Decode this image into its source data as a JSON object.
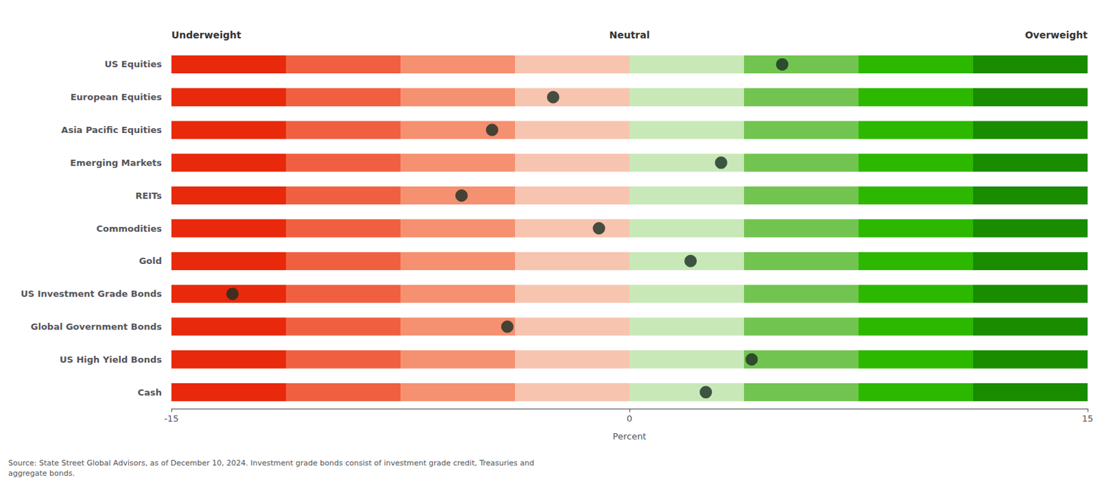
{
  "chart_data": {
    "type": "scatter",
    "orientation": "horizontal",
    "headers": [
      "Underweight",
      "Neutral",
      "Overweight"
    ],
    "xlabel": "Percent",
    "source": "Source: State Street Global Advisors, as of December 10, 2024. Investment grade bonds consist of investment grade credit, Treasuries and\naggregate bonds.",
    "categories": [
      "US Equities",
      "European Equities",
      "Asia Pacific Equities",
      "Emerging Markets",
      "REITs",
      "Commodities",
      "Gold",
      "US Investment Grade Bonds",
      "Global Government Bonds",
      "US High Yield Bonds",
      "Cash"
    ],
    "values": [
      5.0,
      -2.5,
      -4.5,
      3.0,
      -5.5,
      -1.0,
      2.0,
      -13.0,
      -4.0,
      4.0,
      2.5
    ],
    "color": "#1a2e24",
    "bands": [
      {
        "from": -15,
        "to": -11.25,
        "color": "#e8290b"
      },
      {
        "from": -11.25,
        "to": -7.5,
        "color": "#f06040"
      },
      {
        "from": -7.5,
        "to": -3.75,
        "color": "#f59070"
      },
      {
        "from": -3.75,
        "to": 0,
        "color": "#f7c4b0"
      },
      {
        "from": 0,
        "to": 3.75,
        "color": "#c8e8b8"
      },
      {
        "from": 3.75,
        "to": 7.5,
        "color": "#72c450"
      },
      {
        "from": 7.5,
        "to": 11.25,
        "color": "#2db800"
      },
      {
        "from": 11.25,
        "to": 15,
        "color": "#1a8c00"
      }
    ],
    "xlim": [
      -15,
      15
    ],
    "xticks": [
      -15,
      0,
      15
    ],
    "grid": false
  }
}
